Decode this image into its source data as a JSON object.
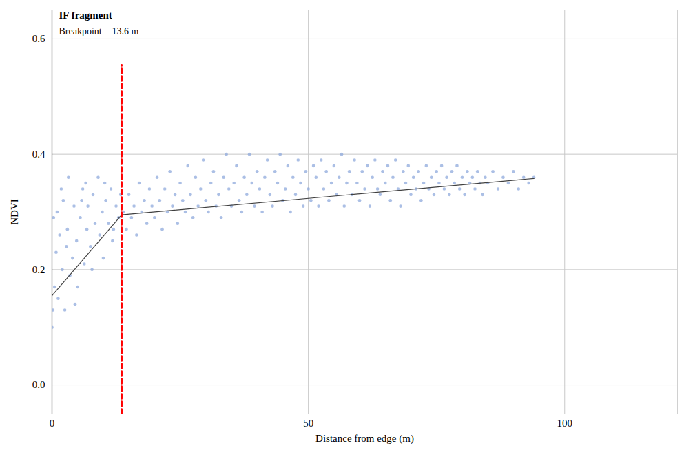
{
  "chart_data": {
    "type": "scatter",
    "title": "IF fragment",
    "subtitle": "Breakpoint = 13.6 m",
    "x_label": "Distance from edge (m)",
    "y_label": "NDVI",
    "xlim": [
      0,
      122
    ],
    "ylim": [
      -0.05,
      0.65
    ],
    "xticks": [
      0,
      50,
      100
    ],
    "yticks": [
      {
        "value": 0,
        "label": "0.0"
      },
      {
        "value": 0.2,
        "label": "0.2"
      },
      {
        "value": 0.4,
        "label": "0.4"
      },
      {
        "value": 0.6,
        "label": "0.6"
      }
    ],
    "grid": true,
    "color": "#8faadc",
    "marker": "circle",
    "x": [
      0,
      0.5,
      0.8,
      1,
      1.2,
      1.5,
      2,
      2.2,
      2.5,
      3,
      3.2,
      3.5,
      4,
      4.3,
      4.8,
      5,
      5.5,
      6,
      6.3,
      6.8,
      7,
      7.5,
      8,
      8.4,
      9,
      9.3,
      9.8,
      10,
      10.5,
      11,
      11.5,
      12,
      12.5,
      13,
      13.4,
      0.3,
      1.8,
      2.8,
      5.8,
      7.8,
      11.8,
      0.2,
      4.5,
      6.6,
      10.3,
      14,
      14.5,
      15,
      15.5,
      16,
      16.5,
      17,
      17.5,
      18,
      18.5,
      19,
      19.5,
      20,
      20.5,
      21,
      21.5,
      22,
      22.5,
      23,
      23.5,
      24,
      24.5,
      25,
      25.5,
      26,
      26.5,
      27,
      27.5,
      28,
      28.5,
      29,
      29.5,
      30,
      30.5,
      31,
      31.5,
      32,
      32.5,
      33,
      33.5,
      34,
      34.5,
      35,
      35.5,
      36,
      36.5,
      37,
      37.5,
      38,
      38.5,
      39,
      39.5,
      40,
      40.5,
      41,
      41.5,
      42,
      42.5,
      43,
      43.5,
      44,
      44.5,
      45,
      45.5,
      46,
      46.5,
      47,
      47.5,
      48,
      48.5,
      49,
      49.5,
      50,
      50.5,
      51,
      51.5,
      52,
      52.5,
      53,
      53.5,
      54,
      54.5,
      55,
      55.5,
      56,
      56.5,
      57,
      57.5,
      58,
      58.5,
      59,
      59.5,
      60,
      60.5,
      61,
      61.5,
      62,
      62.5,
      63,
      63.5,
      64,
      64.5,
      65,
      65.5,
      66,
      66.5,
      67,
      67.5,
      68,
      68.5,
      69,
      69.5,
      70,
      70.5,
      71,
      71.5,
      72,
      72.5,
      73,
      73.5,
      74,
      74.5,
      75,
      75.5,
      76,
      76.5,
      77,
      77.5,
      78,
      78.5,
      79,
      79.5,
      80,
      80.5,
      81,
      81.5,
      82,
      82.5,
      83,
      83.5,
      84,
      84.5,
      85,
      86,
      87,
      88,
      89,
      90,
      91,
      92,
      93,
      94
    ],
    "values": [
      0.1,
      0.17,
      0.23,
      0.3,
      0.15,
      0.26,
      0.2,
      0.32,
      0.13,
      0.27,
      0.36,
      0.19,
      0.22,
      0.31,
      0.25,
      0.17,
      0.29,
      0.34,
      0.21,
      0.27,
      0.31,
      0.24,
      0.33,
      0.28,
      0.36,
      0.26,
      0.3,
      0.22,
      0.32,
      0.28,
      0.34,
      0.27,
      0.31,
      0.29,
      0.33,
      0.29,
      0.34,
      0.24,
      0.32,
      0.2,
      0.25,
      0.13,
      0.14,
      0.35,
      0.35,
      0.3,
      0.27,
      0.33,
      0.29,
      0.31,
      0.26,
      0.35,
      0.3,
      0.32,
      0.28,
      0.34,
      0.31,
      0.29,
      0.36,
      0.32,
      0.27,
      0.34,
      0.3,
      0.37,
      0.31,
      0.33,
      0.28,
      0.35,
      0.32,
      0.3,
      0.38,
      0.33,
      0.29,
      0.36,
      0.31,
      0.34,
      0.39,
      0.32,
      0.3,
      0.35,
      0.37,
      0.31,
      0.33,
      0.29,
      0.36,
      0.4,
      0.34,
      0.31,
      0.35,
      0.38,
      0.32,
      0.3,
      0.36,
      0.33,
      0.4,
      0.35,
      0.31,
      0.37,
      0.34,
      0.3,
      0.36,
      0.39,
      0.33,
      0.31,
      0.37,
      0.35,
      0.4,
      0.32,
      0.34,
      0.38,
      0.3,
      0.36,
      0.33,
      0.39,
      0.35,
      0.31,
      0.37,
      0.34,
      0.32,
      0.38,
      0.36,
      0.31,
      0.39,
      0.34,
      0.37,
      0.32,
      0.35,
      0.38,
      0.33,
      0.36,
      0.4,
      0.31,
      0.35,
      0.37,
      0.33,
      0.39,
      0.35,
      0.32,
      0.37,
      0.34,
      0.38,
      0.31,
      0.36,
      0.39,
      0.34,
      0.33,
      0.37,
      0.35,
      0.38,
      0.32,
      0.36,
      0.39,
      0.34,
      0.31,
      0.37,
      0.35,
      0.38,
      0.33,
      0.36,
      0.34,
      0.37,
      0.32,
      0.35,
      0.38,
      0.34,
      0.36,
      0.33,
      0.37,
      0.35,
      0.38,
      0.34,
      0.36,
      0.33,
      0.37,
      0.35,
      0.38,
      0.34,
      0.36,
      0.33,
      0.37,
      0.35,
      0.36,
      0.34,
      0.37,
      0.35,
      0.33,
      0.36,
      0.35,
      0.37,
      0.34,
      0.36,
      0.35,
      0.37,
      0.34,
      0.36,
      0.35,
      0.36
    ],
    "fit": {
      "type": "line",
      "x": [
        0,
        13.6,
        94
      ],
      "values": [
        0.155,
        0.295,
        0.358
      ],
      "color": "#404040",
      "line_style": "solid"
    },
    "breakpoint": {
      "type": "line",
      "x": [
        13.6,
        13.6
      ],
      "values": [
        -0.05,
        0.555
      ],
      "color": "#ff0000",
      "line_style": "dashed"
    }
  }
}
